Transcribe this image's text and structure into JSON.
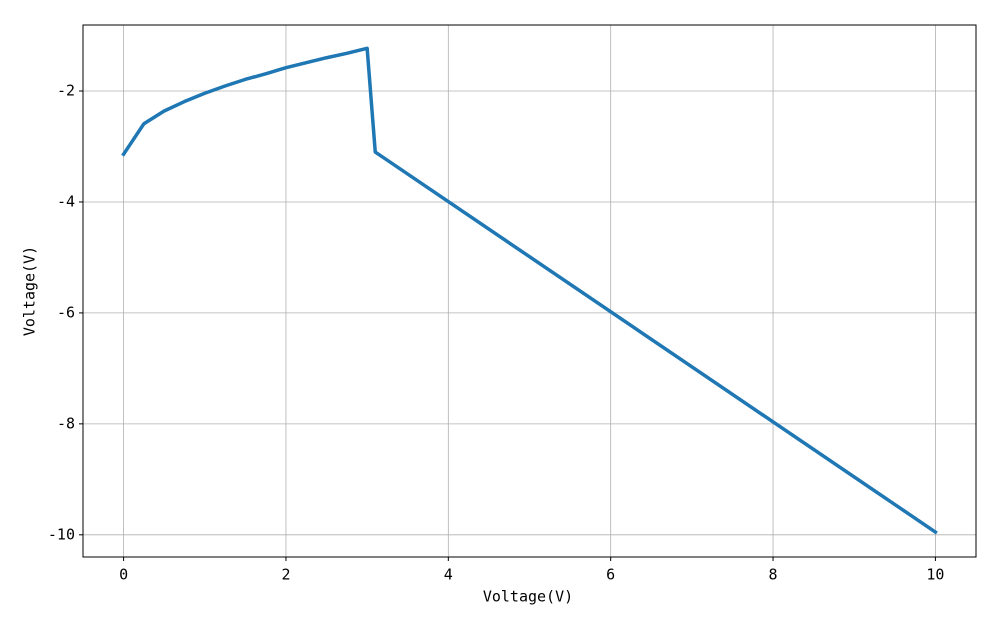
{
  "chart_data": {
    "type": "line",
    "x_label": "Voltage(V)",
    "y_label": "Voltage(V)",
    "x": [
      0,
      0.25,
      0.5,
      0.75,
      1,
      1.25,
      1.5,
      1.75,
      2,
      2.25,
      2.5,
      2.75,
      3,
      3.1,
      10
    ],
    "values": [
      -3.14,
      -2.59,
      -2.36,
      -2.19,
      -2.04,
      -1.91,
      -1.79,
      -1.69,
      -1.58,
      -1.49,
      -1.4,
      -1.32,
      -1.23,
      -3.1,
      -9.95
    ],
    "color": "#1f77b4",
    "xlim": [
      -0.5,
      10.5
    ],
    "ylim": [
      -10.4,
      -0.81
    ],
    "xticks": [
      0,
      2,
      4,
      6,
      8,
      10
    ],
    "yticks": [
      -2,
      -4,
      -6,
      -8,
      -10
    ],
    "grid": true
  }
}
